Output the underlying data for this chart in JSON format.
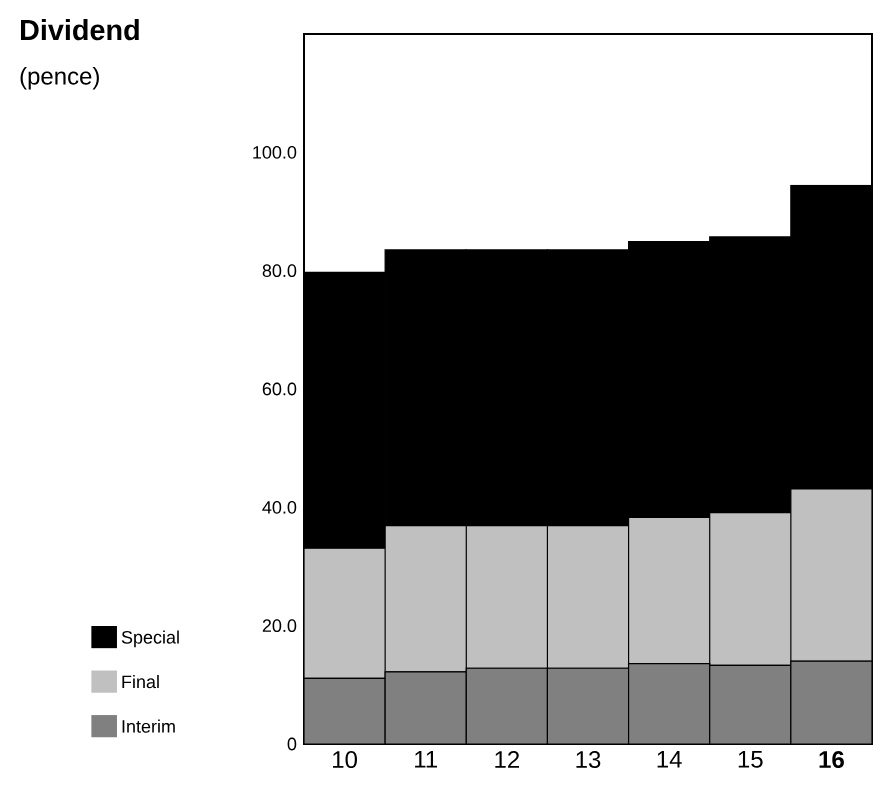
{
  "chart_data": {
    "type": "bar",
    "stacked": true,
    "title": "Dividend",
    "subtitle": "(pence)",
    "categories": [
      "10",
      "11",
      "12",
      "13",
      "14",
      "15",
      "**16**"
    ],
    "series": [
      {
        "name": "Interim",
        "color": "#808080",
        "values": [
          11.1,
          12.2,
          12.8,
          12.8,
          13.6,
          13.3,
          14.0
        ]
      },
      {
        "name": "Final",
        "color": "#c0c0c0",
        "values": [
          22.0,
          24.7,
          24.1,
          24.1,
          24.7,
          25.8,
          29.1
        ]
      },
      {
        "name": "Special",
        "color": "#000000",
        "values": [
          46.6,
          46.6,
          46.6,
          46.6,
          46.6,
          46.6,
          51.3
        ]
      }
    ],
    "ylim": [
      0,
      120
    ],
    "yticks": [
      0,
      {
        "value": 20,
        "label": "20.0"
      },
      {
        "value": 40,
        "label": "40.0"
      },
      {
        "value": 60,
        "label": "60.0"
      },
      {
        "value": 80,
        "label": "80.0"
      },
      {
        "value": 100,
        "label": "100.0"
      }
    ],
    "legend": "left"
  }
}
